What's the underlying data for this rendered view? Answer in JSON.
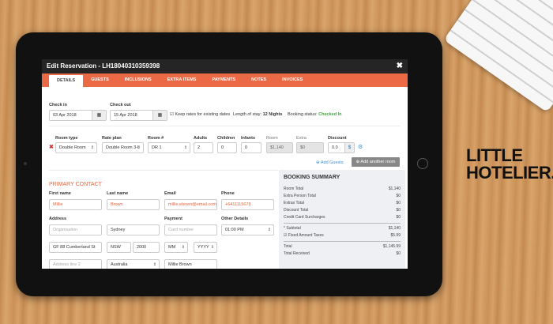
{
  "logo": {
    "line1": "LITTLE",
    "line2": "HOTELIER."
  },
  "modal": {
    "title": "Edit Reservation - LH18040310359398",
    "close": "✖"
  },
  "tabs": [
    "DETAILS",
    "GUESTS",
    "INCLUSIONS",
    "EXTRA ITEMS",
    "PAYMENTS",
    "NOTES",
    "INVOICES"
  ],
  "dates": {
    "checkin_label": "Check in",
    "checkin": "03 Apr 2018",
    "checkout_label": "Check out",
    "checkout": "15 Apr 2018",
    "keep_rates": "Keep rates for existing dates",
    "length_label": "Length of stay:",
    "length": "12 Nights",
    "status_label": "Booking status:",
    "status": "Checked In",
    "status_color": "#3bab3b"
  },
  "room": {
    "labels": {
      "type": "Room type",
      "rate": "Rate plan",
      "num": "Room #",
      "adults": "Adults",
      "children": "Children",
      "infants": "Infants",
      "room": "Room",
      "extra": "Extra",
      "discount": "Discount"
    },
    "type": "Double Room",
    "rate": "Double Room 3-I",
    "num": "DR 1",
    "adults": "2",
    "children": "0",
    "infants": "0",
    "room": "$1,140",
    "extra": "$0",
    "discount": "0.0",
    "discount_unit": "$",
    "add_guests": "Add Guests",
    "add_room": "Add another room"
  },
  "contact": {
    "heading": "PRIMARY CONTACT",
    "labels": {
      "first": "First name",
      "last": "Last name",
      "email": "Email",
      "phone": "Phone",
      "address": "Address",
      "payment": "Payment",
      "other": "Other Details"
    },
    "first": "Millie",
    "last": "Brown",
    "email": "millie.eleven@email.com",
    "phone": "+6411115678",
    "organisation_ph": "Organisation",
    "city": "Sydney",
    "card_ph": "Card number",
    "time": "01:00 PM",
    "street": "GF 88 Cumberland St",
    "state": "NSW",
    "postcode": "2000",
    "mm": "MM",
    "yyyy": "YYYY",
    "address2_ph": "Address line 2",
    "country": "Australia",
    "cardholder": "Millie Brown"
  },
  "summary": {
    "title": "BOOKING SUMMARY",
    "rows": [
      [
        "Room Total",
        "$1,140"
      ],
      [
        "Extra Person Total",
        "$0"
      ],
      [
        "Extras Total",
        "$0"
      ],
      [
        "Discount Total",
        "$0"
      ],
      [
        "Credit Card Surcharges",
        "$0"
      ]
    ],
    "subtotal": [
      "* Subtotal",
      "$1,140"
    ],
    "taxes": [
      "Fixed Amount Taxes",
      "$5.99"
    ],
    "total": [
      "Total",
      "$1,145.99"
    ],
    "received": [
      "Total Received",
      "$0"
    ]
  },
  "colors": {
    "accent": "#eb6a45",
    "link": "#3a8fd6"
  }
}
